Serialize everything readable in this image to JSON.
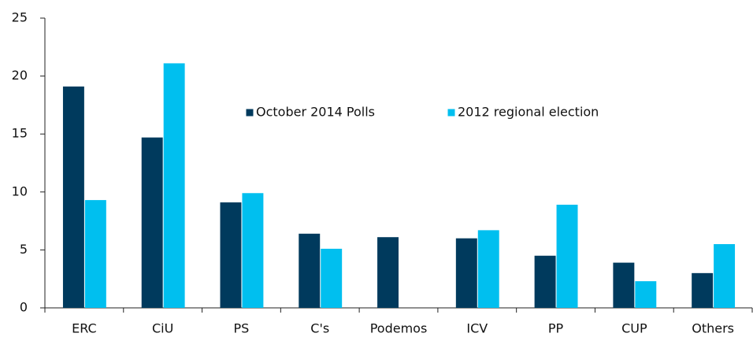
{
  "chart_data": {
    "type": "bar",
    "categories": [
      "ERC",
      "CiU",
      "PS",
      "C's",
      "Podemos",
      "ICV",
      "PP",
      "CUP",
      "Others"
    ],
    "series": [
      {
        "name": "October 2014 Polls",
        "color": "#003a5d",
        "values": [
          19.1,
          14.7,
          9.1,
          6.4,
          6.1,
          6.0,
          4.5,
          3.9,
          3.0
        ]
      },
      {
        "name": "2012 regional election",
        "color": "#00bfef",
        "values": [
          9.3,
          21.1,
          9.9,
          5.1,
          null,
          6.7,
          8.9,
          2.3,
          5.5
        ]
      }
    ],
    "ylim": [
      0,
      25
    ],
    "yticks": [
      0,
      5,
      10,
      15,
      20,
      25
    ],
    "grid": false,
    "legend": "top"
  }
}
